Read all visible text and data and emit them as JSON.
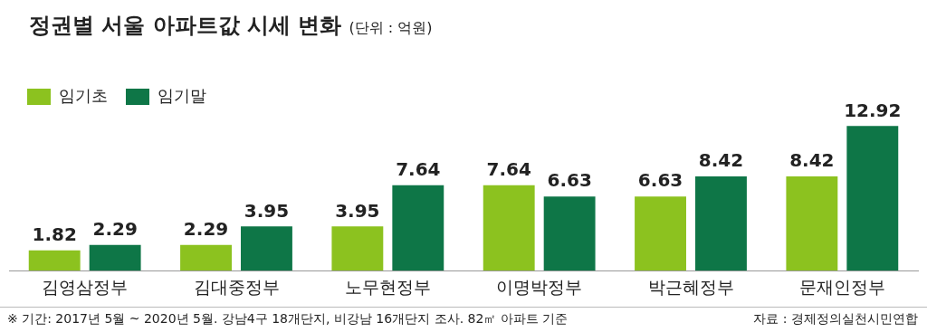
{
  "chart_data": {
    "type": "bar",
    "title": "정권별 서울 아파트값 시세 변화",
    "subtitle": "(단위 : 억원)",
    "categories": [
      "김영삼정부",
      "김대중정부",
      "노무현정부",
      "이명박정부",
      "박근혜정부",
      "문재인정부"
    ],
    "series": [
      {
        "name": "임기초",
        "color": "#8cc21f",
        "values": [
          1.82,
          2.29,
          3.95,
          7.64,
          6.63,
          8.42
        ]
      },
      {
        "name": "임기말",
        "color": "#0e7647",
        "values": [
          2.29,
          3.95,
          7.64,
          6.63,
          8.42,
          12.92
        ]
      }
    ],
    "data_labels": true,
    "legend": "top left",
    "grid": false,
    "annotations": [
      "※ 기간: 2017년 5월 ~ 2020년 5월. 강남4구 18개단지, 비강남 16개단지 조사. 82㎡ 아파트 기준",
      "자료 : 경제정의실천시민연합"
    ]
  }
}
